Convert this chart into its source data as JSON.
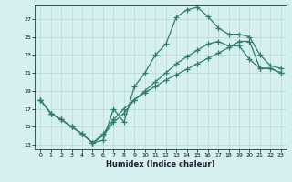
{
  "xlabel": "Humidex (Indice chaleur)",
  "bg_color": "#d6f0f0",
  "grid_color": "#b8d8d8",
  "line_color": "#2e7d6e",
  "xlim": [
    -0.5,
    23.5
  ],
  "ylim": [
    12.5,
    28.5
  ],
  "yticks": [
    13,
    15,
    17,
    19,
    21,
    23,
    25,
    27
  ],
  "xticks": [
    0,
    1,
    2,
    3,
    4,
    5,
    6,
    7,
    8,
    9,
    10,
    11,
    12,
    13,
    14,
    15,
    16,
    17,
    18,
    19,
    20,
    21,
    22,
    23
  ],
  "curve1_x": [
    0,
    1,
    2,
    3,
    4,
    5,
    6,
    7,
    8,
    9,
    10,
    11,
    12,
    13,
    14,
    15,
    16,
    17,
    18,
    19,
    20,
    21,
    22,
    23
  ],
  "curve1_y": [
    18.0,
    16.5,
    15.8,
    15.0,
    14.2,
    13.2,
    13.5,
    17.0,
    15.5,
    19.5,
    21.0,
    23.0,
    24.2,
    27.2,
    28.0,
    28.3,
    27.3,
    26.0,
    25.3,
    25.3,
    25.0,
    23.0,
    21.8,
    21.5
  ],
  "curve2_x": [
    0,
    1,
    2,
    3,
    4,
    5,
    6,
    7,
    8,
    9,
    10,
    11,
    12,
    13,
    14,
    15,
    16,
    17,
    18,
    19,
    20,
    21,
    22,
    23
  ],
  "curve2_y": [
    18.0,
    16.5,
    15.8,
    15.0,
    14.2,
    13.2,
    14.0,
    15.5,
    16.5,
    18.0,
    19.0,
    20.0,
    21.0,
    22.0,
    22.8,
    23.5,
    24.2,
    24.5,
    24.0,
    24.0,
    22.5,
    21.5,
    21.5,
    21.0
  ],
  "curve3_x": [
    0,
    1,
    2,
    3,
    4,
    5,
    6,
    7,
    8,
    9,
    10,
    11,
    12,
    13,
    14,
    15,
    16,
    17,
    18,
    19,
    20,
    21,
    22,
    23
  ],
  "curve3_y": [
    18.0,
    16.5,
    15.8,
    15.0,
    14.2,
    13.2,
    14.2,
    15.8,
    17.0,
    18.0,
    18.8,
    19.5,
    20.2,
    20.8,
    21.4,
    22.0,
    22.6,
    23.2,
    23.8,
    24.5,
    24.5,
    21.5,
    21.5,
    21.0
  ]
}
